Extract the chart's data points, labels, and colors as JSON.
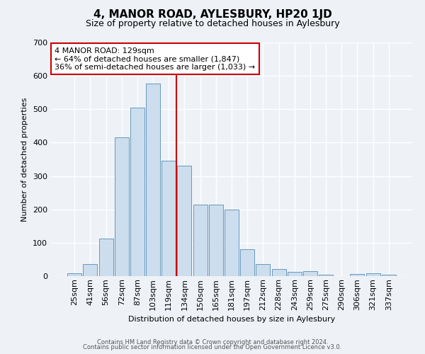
{
  "title": "4, MANOR ROAD, AYLESBURY, HP20 1JD",
  "subtitle": "Size of property relative to detached houses in Aylesbury",
  "xlabel": "Distribution of detached houses by size in Aylesbury",
  "ylabel": "Number of detached properties",
  "bar_labels": [
    "25sqm",
    "41sqm",
    "56sqm",
    "72sqm",
    "87sqm",
    "103sqm",
    "119sqm",
    "134sqm",
    "150sqm",
    "165sqm",
    "181sqm",
    "197sqm",
    "212sqm",
    "228sqm",
    "243sqm",
    "259sqm",
    "275sqm",
    "290sqm",
    "306sqm",
    "321sqm",
    "337sqm"
  ],
  "bar_values": [
    8,
    36,
    113,
    415,
    505,
    577,
    345,
    330,
    215,
    215,
    200,
    80,
    37,
    22,
    13,
    14,
    5,
    0,
    6,
    9,
    5
  ],
  "bar_color": "#ccdded",
  "bar_edge_color": "#6699bb",
  "vline_color": "#cc0000",
  "annotation_title": "4 MANOR ROAD: 129sqm",
  "annotation_line1": "← 64% of detached houses are smaller (1,847)",
  "annotation_line2": "36% of semi-detached houses are larger (1,033) →",
  "annotation_box_facecolor": "#ffffff",
  "annotation_box_edgecolor": "#cc0000",
  "ylim": [
    0,
    700
  ],
  "yticks": [
    0,
    100,
    200,
    300,
    400,
    500,
    600,
    700
  ],
  "footer1": "Contains HM Land Registry data © Crown copyright and database right 2024.",
  "footer2": "Contains public sector information licensed under the Open Government Licence v3.0.",
  "bg_color": "#eef2f7",
  "plot_bg_color": "#eef2f7",
  "title_fontsize": 11,
  "subtitle_fontsize": 9,
  "ylabel_fontsize": 8,
  "xlabel_fontsize": 8,
  "tick_fontsize": 8,
  "footer_fontsize": 6
}
